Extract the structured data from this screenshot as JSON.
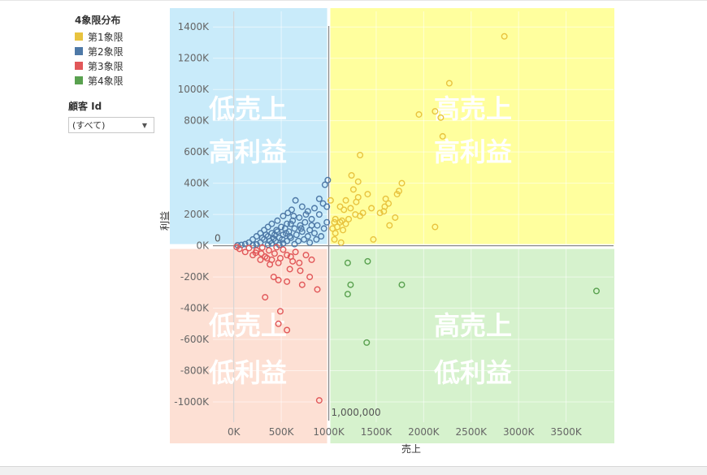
{
  "legend": {
    "title": "4象限分布",
    "items": [
      {
        "label": "第1象限",
        "color": "#e8c33f"
      },
      {
        "label": "第2象限",
        "color": "#4e79a7"
      },
      {
        "label": "第3象限",
        "color": "#e15759"
      },
      {
        "label": "第4象限",
        "color": "#59a14f"
      }
    ]
  },
  "filter": {
    "title": "顧客 Id",
    "value": "(すべて)"
  },
  "chart_data": {
    "type": "scatter",
    "xlabel": "売上",
    "ylabel": "利益",
    "xlim": [
      -220000,
      4000000
    ],
    "ylim": [
      -1130000,
      1500000
    ],
    "x_ticks": [
      {
        "value": 0,
        "label": "0K"
      },
      {
        "value": 500000,
        "label": "500K"
      },
      {
        "value": 1000000,
        "label": "1000K"
      },
      {
        "value": 1500000,
        "label": "1500K"
      },
      {
        "value": 2000000,
        "label": "2000K"
      },
      {
        "value": 2500000,
        "label": "2500K"
      },
      {
        "value": 3000000,
        "label": "3000K"
      },
      {
        "value": 3500000,
        "label": "3500K"
      }
    ],
    "y_ticks": [
      {
        "value": -1000000,
        "label": "-1000K"
      },
      {
        "value": -800000,
        "label": "-800K"
      },
      {
        "value": -600000,
        "label": "-600K"
      },
      {
        "value": -400000,
        "label": "-400K"
      },
      {
        "value": -200000,
        "label": "-200K"
      },
      {
        "value": 0,
        "label": "0K"
      },
      {
        "value": 200000,
        "label": "200K"
      },
      {
        "value": 400000,
        "label": "400K"
      },
      {
        "value": 600000,
        "label": "600K"
      },
      {
        "value": 800000,
        "label": "800K"
      },
      {
        "value": 1000000,
        "label": "1000K"
      },
      {
        "value": 1200000,
        "label": "1200K"
      },
      {
        "value": 1400000,
        "label": "1400K"
      }
    ],
    "reference_lines": {
      "x": {
        "value": 1000000,
        "label": "1,000,000"
      },
      "y": {
        "value": 0,
        "label": "0"
      }
    },
    "quadrants": [
      {
        "name": "q2",
        "lines": [
          "低売上",
          "高利益"
        ],
        "color": "#c9ebfa"
      },
      {
        "name": "q1",
        "lines": [
          "高売上",
          "高利益"
        ],
        "color": "#ffff9e"
      },
      {
        "name": "q3",
        "lines": [
          "低売上",
          "低利益"
        ],
        "color": "#fde0d4"
      },
      {
        "name": "q4",
        "lines": [
          "高売上",
          "低利益"
        ],
        "color": "#d6f2cd"
      }
    ],
    "series": [
      {
        "name": "第1象限",
        "color": "#e8c33f",
        "points": [
          [
            2850000,
            1340000
          ],
          [
            2270000,
            1040000
          ],
          [
            2120000,
            860000
          ],
          [
            1950000,
            840000
          ],
          [
            2180000,
            820000
          ],
          [
            2200000,
            700000
          ],
          [
            1330000,
            580000
          ],
          [
            1240000,
            450000
          ],
          [
            1310000,
            410000
          ],
          [
            1770000,
            400000
          ],
          [
            1260000,
            360000
          ],
          [
            1740000,
            350000
          ],
          [
            1410000,
            330000
          ],
          [
            1720000,
            330000
          ],
          [
            1310000,
            310000
          ],
          [
            1600000,
            300000
          ],
          [
            1180000,
            290000
          ],
          [
            1290000,
            280000
          ],
          [
            1630000,
            270000
          ],
          [
            1590000,
            250000
          ],
          [
            1120000,
            250000
          ],
          [
            1230000,
            240000
          ],
          [
            1450000,
            240000
          ],
          [
            1160000,
            230000
          ],
          [
            1580000,
            220000
          ],
          [
            1360000,
            210000
          ],
          [
            1540000,
            210000
          ],
          [
            1280000,
            200000
          ],
          [
            1330000,
            190000
          ],
          [
            1700000,
            180000
          ],
          [
            1210000,
            170000
          ],
          [
            1070000,
            170000
          ],
          [
            1140000,
            160000
          ],
          [
            1060000,
            150000
          ],
          [
            1120000,
            150000
          ],
          [
            1180000,
            140000
          ],
          [
            1640000,
            130000
          ],
          [
            2120000,
            120000
          ],
          [
            1090000,
            120000
          ],
          [
            1040000,
            110000
          ],
          [
            1150000,
            100000
          ],
          [
            1070000,
            80000
          ],
          [
            1470000,
            40000
          ],
          [
            1060000,
            40000
          ],
          [
            1130000,
            20000
          ],
          [
            1020000,
            290000
          ]
        ]
      },
      {
        "name": "第2象限",
        "color": "#4e79a7",
        "points": [
          [
            990000,
            420000
          ],
          [
            960000,
            390000
          ],
          [
            900000,
            300000
          ],
          [
            650000,
            290000
          ],
          [
            940000,
            270000
          ],
          [
            980000,
            250000
          ],
          [
            720000,
            250000
          ],
          [
            850000,
            240000
          ],
          [
            610000,
            230000
          ],
          [
            780000,
            220000
          ],
          [
            570000,
            210000
          ],
          [
            900000,
            200000
          ],
          [
            520000,
            190000
          ],
          [
            690000,
            180000
          ],
          [
            820000,
            170000
          ],
          [
            460000,
            160000
          ],
          [
            620000,
            160000
          ],
          [
            750000,
            150000
          ],
          [
            980000,
            150000
          ],
          [
            400000,
            140000
          ],
          [
            560000,
            140000
          ],
          [
            700000,
            130000
          ],
          [
            880000,
            130000
          ],
          [
            360000,
            120000
          ],
          [
            500000,
            120000
          ],
          [
            640000,
            110000
          ],
          [
            800000,
            100000
          ],
          [
            950000,
            110000
          ],
          [
            320000,
            100000
          ],
          [
            450000,
            100000
          ],
          [
            580000,
            90000
          ],
          [
            720000,
            90000
          ],
          [
            850000,
            80000
          ],
          [
            280000,
            80000
          ],
          [
            400000,
            80000
          ],
          [
            520000,
            70000
          ],
          [
            660000,
            70000
          ],
          [
            780000,
            60000
          ],
          [
            920000,
            60000
          ],
          [
            240000,
            60000
          ],
          [
            360000,
            60000
          ],
          [
            480000,
            50000
          ],
          [
            600000,
            50000
          ],
          [
            740000,
            40000
          ],
          [
            870000,
            40000
          ],
          [
            200000,
            40000
          ],
          [
            320000,
            40000
          ],
          [
            440000,
            30000
          ],
          [
            560000,
            30000
          ],
          [
            680000,
            30000
          ],
          [
            800000,
            20000
          ],
          [
            160000,
            20000
          ],
          [
            280000,
            20000
          ],
          [
            400000,
            15000
          ],
          [
            520000,
            15000
          ],
          [
            640000,
            10000
          ],
          [
            120000,
            10000
          ],
          [
            240000,
            8000
          ],
          [
            360000,
            6000
          ],
          [
            480000,
            5000
          ],
          [
            80000,
            5000
          ],
          [
            200000,
            3000
          ],
          [
            40000,
            3000
          ],
          [
            600000,
            140000
          ],
          [
            430000,
            70000
          ],
          [
            540000,
            110000
          ],
          [
            380000,
            30000
          ],
          [
            300000,
            50000
          ],
          [
            460000,
            90000
          ],
          [
            340000,
            70000
          ],
          [
            590000,
            60000
          ],
          [
            710000,
            110000
          ],
          [
            630000,
            190000
          ],
          [
            760000,
            200000
          ],
          [
            820000,
            130000
          ],
          [
            510000,
            40000
          ],
          [
            420000,
            45000
          ],
          [
            550000,
            80000
          ]
        ]
      },
      {
        "name": "第3象限",
        "color": "#e15759",
        "points": [
          [
            900000,
            -990000
          ],
          [
            560000,
            -540000
          ],
          [
            470000,
            -500000
          ],
          [
            490000,
            -420000
          ],
          [
            330000,
            -330000
          ],
          [
            880000,
            -280000
          ],
          [
            720000,
            -250000
          ],
          [
            470000,
            -220000
          ],
          [
            560000,
            -230000
          ],
          [
            420000,
            -200000
          ],
          [
            800000,
            -200000
          ],
          [
            700000,
            -160000
          ],
          [
            590000,
            -150000
          ],
          [
            380000,
            -120000
          ],
          [
            470000,
            -110000
          ],
          [
            820000,
            -90000
          ],
          [
            280000,
            -90000
          ],
          [
            350000,
            -80000
          ],
          [
            600000,
            -70000
          ],
          [
            760000,
            -60000
          ],
          [
            200000,
            -60000
          ],
          [
            290000,
            -50000
          ],
          [
            430000,
            -50000
          ],
          [
            650000,
            -40000
          ],
          [
            120000,
            -40000
          ],
          [
            240000,
            -30000
          ],
          [
            370000,
            -30000
          ],
          [
            520000,
            -25000
          ],
          [
            60000,
            -20000
          ],
          [
            160000,
            -15000
          ],
          [
            300000,
            -12000
          ],
          [
            450000,
            -10000
          ],
          [
            30000,
            -8000
          ],
          [
            560000,
            -60000
          ],
          [
            690000,
            -110000
          ],
          [
            330000,
            -70000
          ],
          [
            490000,
            -80000
          ],
          [
            230000,
            -45000
          ],
          [
            400000,
            -90000
          ],
          [
            620000,
            -100000
          ]
        ]
      },
      {
        "name": "第4象限",
        "color": "#59a14f",
        "points": [
          [
            3820000,
            -290000
          ],
          [
            1770000,
            -250000
          ],
          [
            1230000,
            -250000
          ],
          [
            1410000,
            -100000
          ],
          [
            1200000,
            -110000
          ],
          [
            1200000,
            -310000
          ],
          [
            1400000,
            -620000
          ]
        ]
      }
    ]
  }
}
